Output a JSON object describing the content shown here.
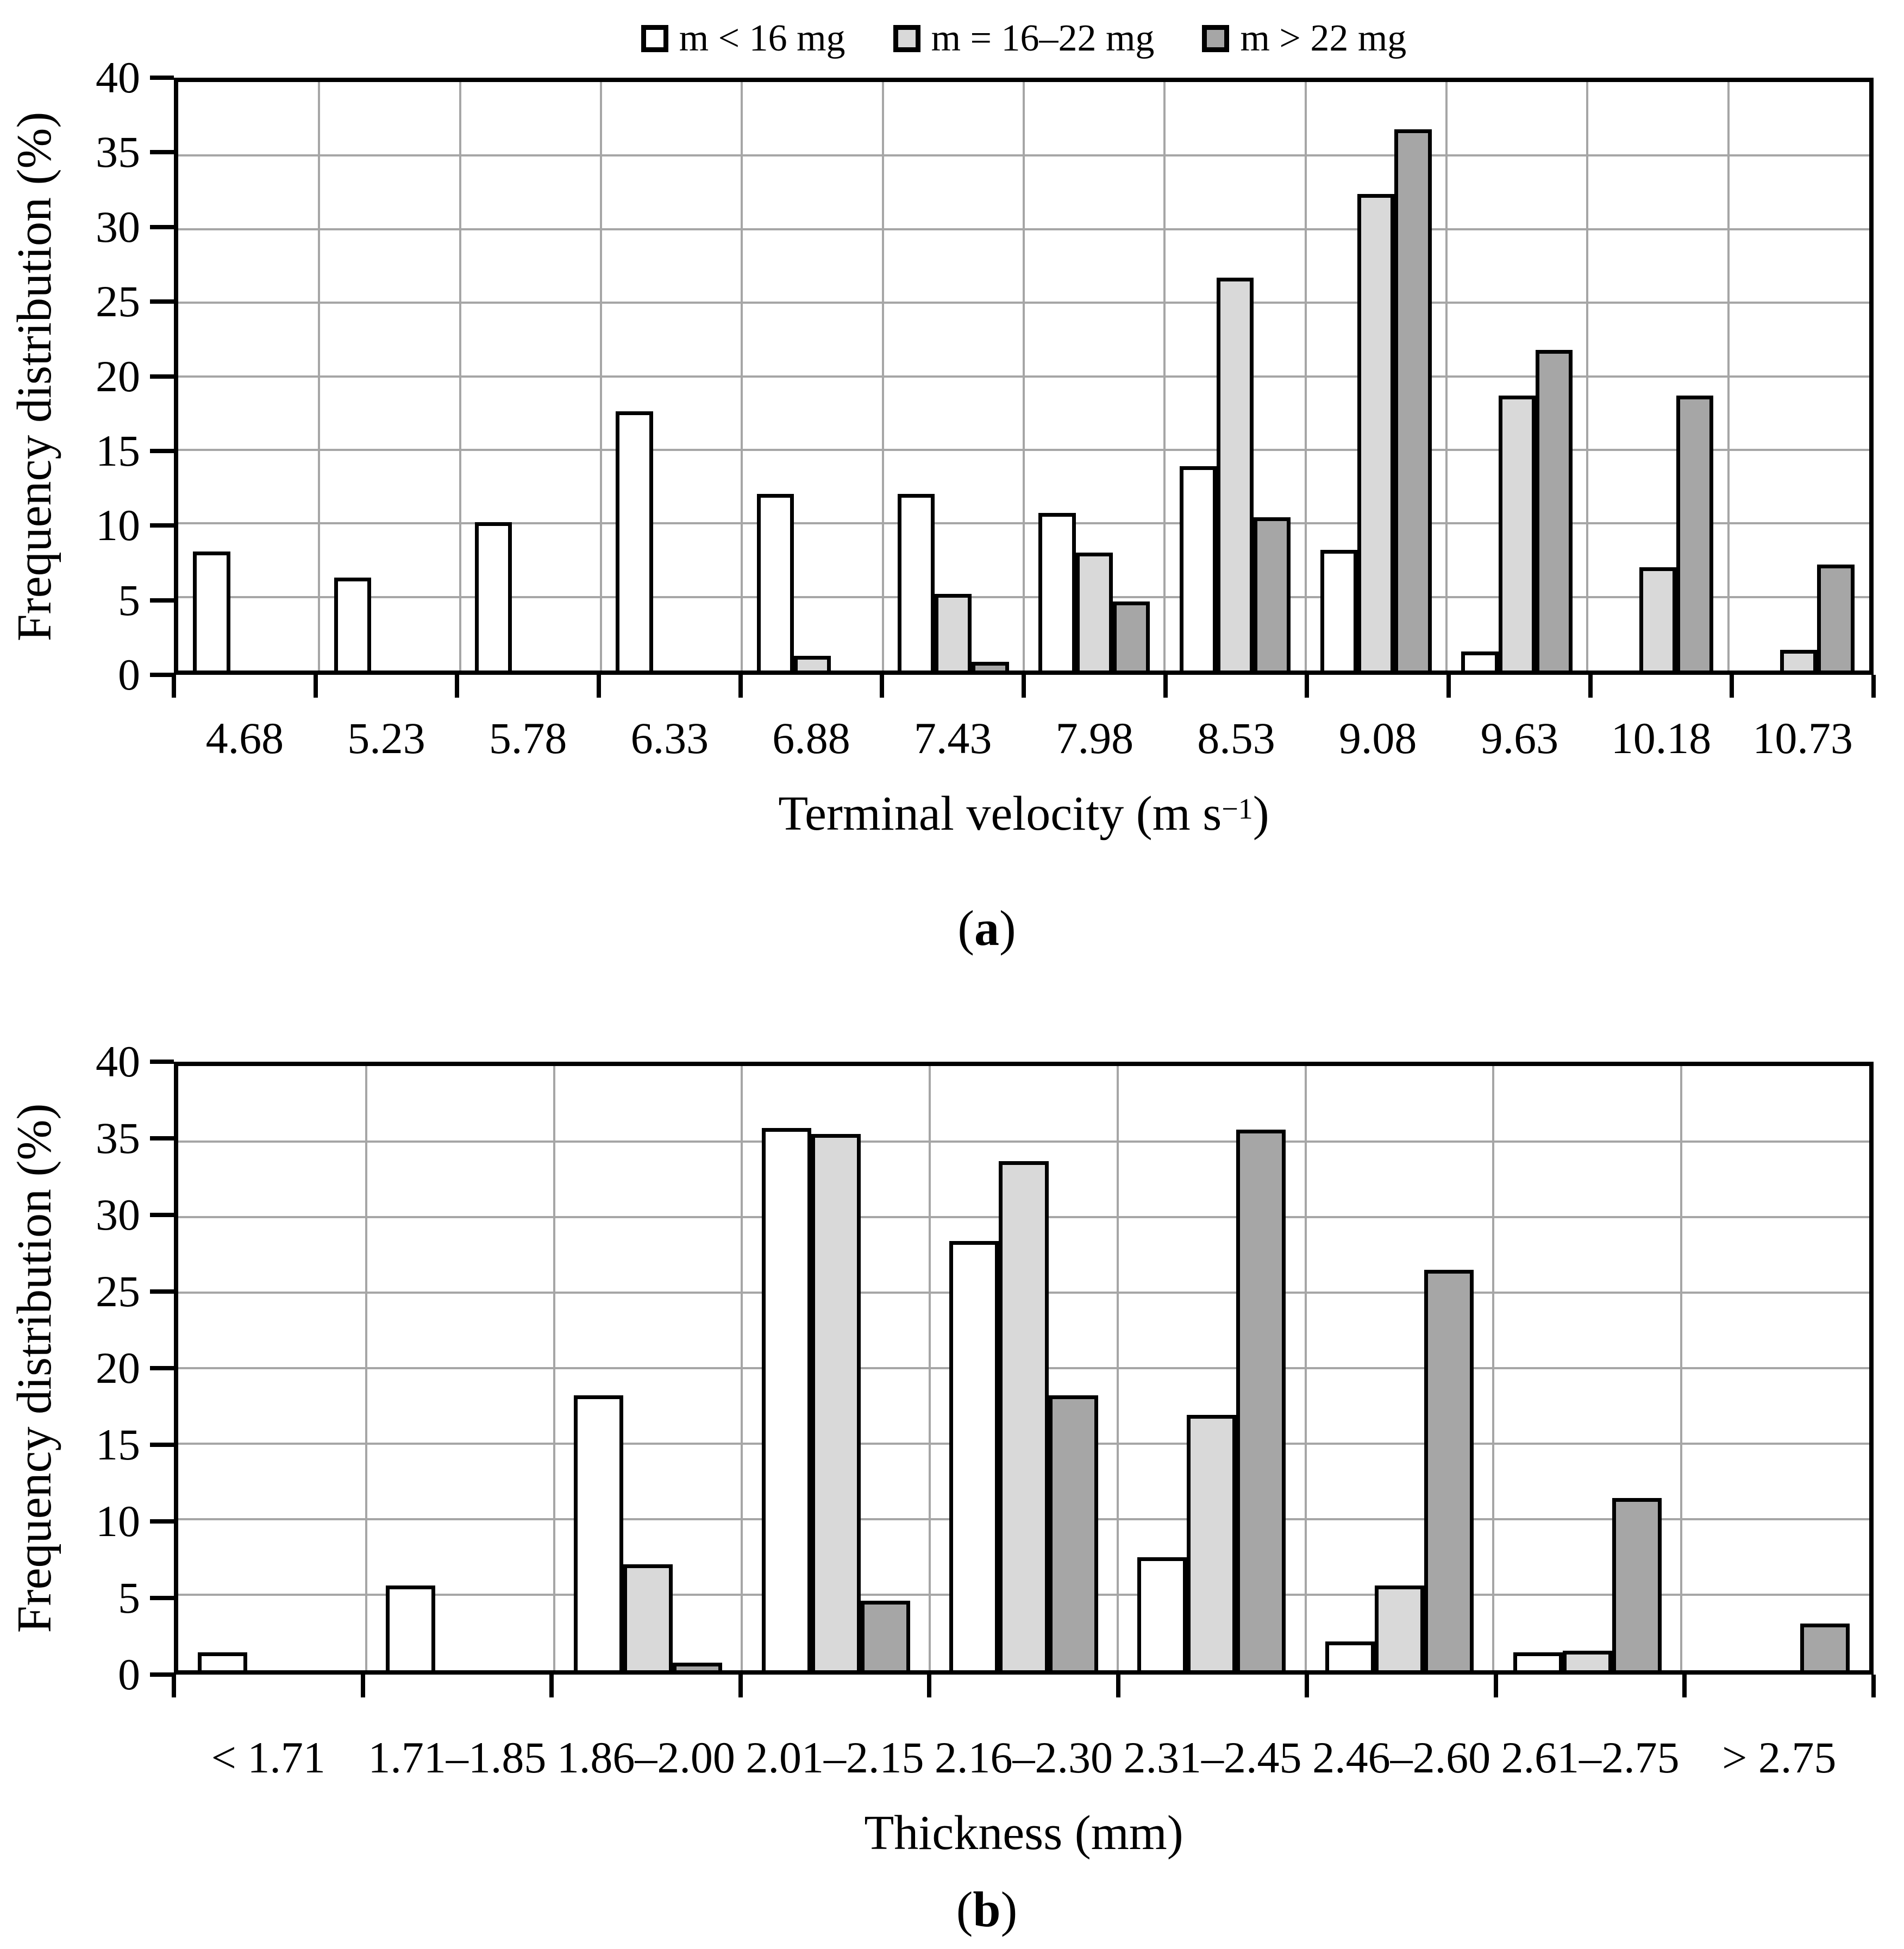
{
  "legend": {
    "items": [
      {
        "label": "m < 16 mg",
        "color": "#FFFFFF"
      },
      {
        "label": "m = 16–22 mg",
        "color": "#D9D9D9"
      },
      {
        "label": "m > 22 mg",
        "color": "#A6A6A6"
      }
    ]
  },
  "captions": {
    "open": "(",
    "a": "a",
    "b": "b",
    "close": ")"
  },
  "colors": {
    "grid": "#A6A6A6",
    "bar_border": "#000000"
  },
  "chart_data": [
    {
      "type": "bar",
      "title": "",
      "ylabel": "Frequency distribution (%)",
      "xlabel_prefix": "Terminal velocity (m s",
      "xlabel_sup": "−1",
      "xlabel_suffix": ")",
      "ylim": [
        0,
        40
      ],
      "ytick_step": 5,
      "grid": true,
      "legend_position": "top",
      "categories": [
        "4.68",
        "5.23",
        "5.78",
        "6.33",
        "6.88",
        "7.43",
        "7.98",
        "8.53",
        "9.08",
        "9.63",
        "10.18",
        "10.73"
      ],
      "series": [
        {
          "name": "m < 16 mg",
          "color": "#FFFFFF",
          "values": [
            8.1,
            6.3,
            10.1,
            17.6,
            12.0,
            12.0,
            10.7,
            13.9,
            8.2,
            1.3,
            0,
            0
          ]
        },
        {
          "name": "m = 16–22 mg",
          "color": "#D9D9D9",
          "values": [
            0,
            0,
            0,
            0,
            1.0,
            5.2,
            8.0,
            26.7,
            32.4,
            18.7,
            7.0,
            1.4
          ]
        },
        {
          "name": "m > 22 mg",
          "color": "#A6A6A6",
          "values": [
            0,
            0,
            0,
            0,
            0,
            0.6,
            4.7,
            10.4,
            36.8,
            21.8,
            18.7,
            7.2
          ]
        }
      ]
    },
    {
      "type": "bar",
      "title": "",
      "ylabel": "Frequency distribution (%)",
      "xlabel_prefix": "Thickness (mm)",
      "xlabel_sup": "",
      "xlabel_suffix": "",
      "ylim": [
        0,
        40
      ],
      "ytick_step": 5,
      "grid": true,
      "legend_position": "top",
      "categories": [
        "< 1.71",
        "1.71–1.85",
        "1.86–2.00",
        "2.01–2.15",
        "2.16–2.30",
        "2.31–2.45",
        "2.46–2.60",
        "2.61–2.75",
        "> 2.75"
      ],
      "series": [
        {
          "name": "m < 16 mg",
          "color": "#FFFFFF",
          "values": [
            1.2,
            5.6,
            18.2,
            35.9,
            28.4,
            7.5,
            1.9,
            1.2,
            0
          ]
        },
        {
          "name": "m = 16–22 mg",
          "color": "#D9D9D9",
          "values": [
            0,
            0,
            7.0,
            35.5,
            33.7,
            16.9,
            5.6,
            1.3,
            0
          ]
        },
        {
          "name": "m > 22 mg",
          "color": "#A6A6A6",
          "values": [
            0,
            0,
            0.5,
            4.6,
            18.2,
            35.8,
            26.5,
            11.4,
            3.1
          ]
        }
      ]
    }
  ]
}
